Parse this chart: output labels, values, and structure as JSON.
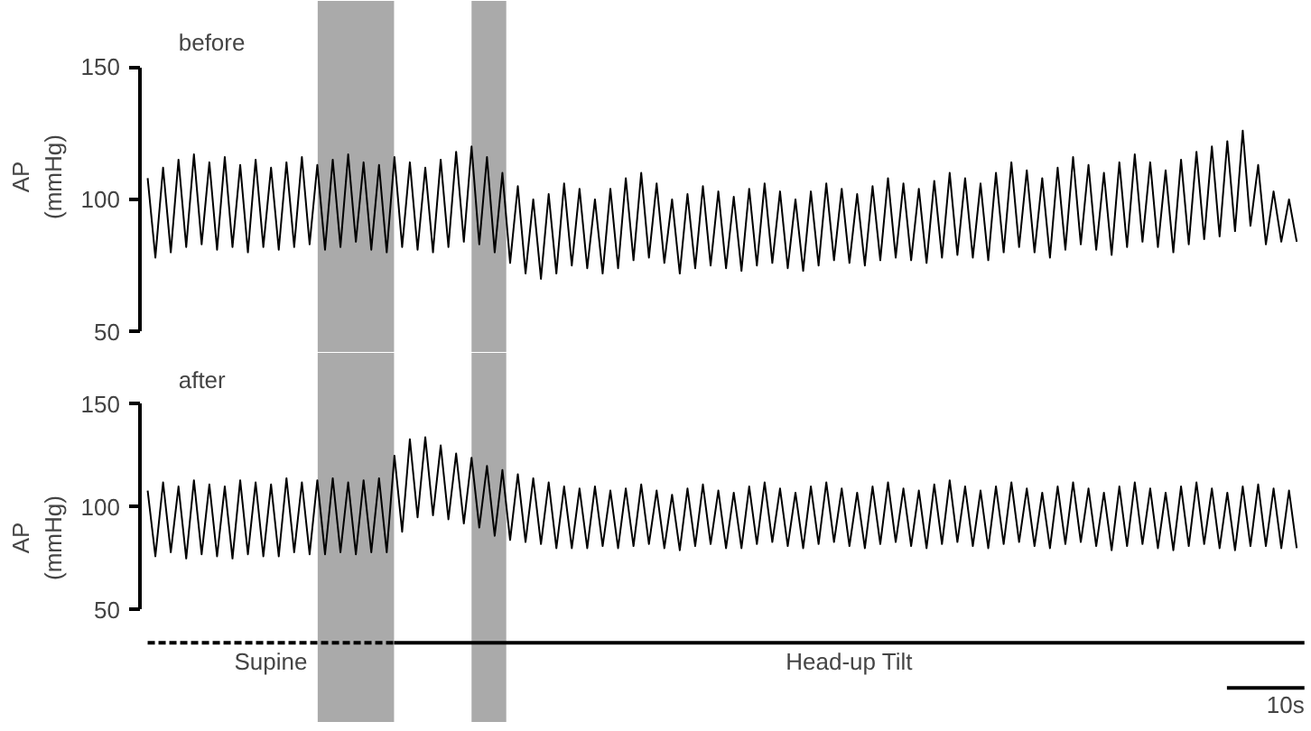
{
  "chart_data": [
    {
      "type": "line",
      "title": "before",
      "ylabel": "AP (mmHg)",
      "ylim": [
        50,
        150
      ],
      "yticks": [
        50,
        100,
        150
      ],
      "tick_labels": "y",
      "grid": false,
      "categories": [
        null,
        null,
        null,
        null,
        null,
        null,
        null,
        null,
        null,
        null,
        null,
        null,
        null,
        null,
        null,
        null,
        null,
        null,
        null,
        null,
        null,
        null,
        null,
        null,
        null,
        null,
        null,
        null,
        null,
        null,
        null,
        null,
        null,
        null,
        null,
        null,
        null,
        null,
        null,
        null,
        null,
        null,
        null,
        null,
        null,
        null,
        null,
        null,
        null,
        null,
        null,
        null,
        null,
        null,
        null,
        null,
        null,
        null,
        null,
        null,
        null,
        null,
        null,
        null,
        null,
        null,
        null,
        null,
        null,
        null,
        null,
        null,
        null,
        null,
        null,
        null,
        null,
        null,
        null,
        null,
        null,
        null,
        null,
        null,
        null,
        null,
        null,
        null,
        null,
        null,
        null,
        null,
        null,
        null,
        null,
        null,
        null,
        null,
        null,
        null,
        null,
        null,
        null,
        null,
        null,
        null,
        null,
        null,
        null,
        null,
        null,
        null,
        null,
        null,
        null,
        null,
        null,
        null,
        null,
        null,
        null,
        null,
        null,
        null,
        null,
        null,
        null,
        null,
        null,
        null,
        null,
        null,
        null,
        null,
        null,
        null,
        null,
        null,
        null,
        null,
        null,
        null,
        null,
        null,
        null,
        null,
        null,
        null,
        null,
        null
      ],
      "series": [
        {
          "color": "#000000",
          "values": [
            108,
            78,
            112,
            80,
            115,
            82,
            117,
            83,
            114,
            81,
            116,
            82,
            113,
            80,
            115,
            82,
            112,
            81,
            114,
            82,
            116,
            83,
            113,
            81,
            115,
            82,
            117,
            84,
            114,
            81,
            113,
            80,
            116,
            82,
            114,
            81,
            112,
            80,
            115,
            82,
            118,
            84,
            120,
            83,
            116,
            80,
            110,
            76,
            105,
            72,
            100,
            70,
            102,
            72,
            106,
            75,
            104,
            74,
            100,
            72,
            104,
            74,
            108,
            77,
            110,
            78,
            106,
            76,
            100,
            72,
            102,
            74,
            105,
            75,
            103,
            74,
            101,
            73,
            104,
            75,
            106,
            76,
            103,
            74,
            100,
            73,
            103,
            75,
            106,
            77,
            104,
            76,
            102,
            75,
            105,
            77,
            108,
            78,
            106,
            77,
            104,
            76,
            107,
            78,
            110,
            79,
            108,
            78,
            106,
            77,
            110,
            80,
            114,
            82,
            111,
            80,
            108,
            78,
            112,
            81,
            116,
            83,
            113,
            81,
            110,
            79,
            114,
            82,
            117,
            84,
            114,
            82,
            111,
            80,
            115,
            83,
            118,
            85,
            120,
            86,
            122,
            88,
            126,
            90,
            113,
            83,
            103,
            84,
            100,
            84
          ]
        }
      ]
    },
    {
      "type": "line",
      "title": "after",
      "ylabel": "AP (mmHg)",
      "ylim": [
        50,
        150
      ],
      "yticks": [
        50,
        100,
        150
      ],
      "tick_labels": "y",
      "grid": false,
      "categories": [
        null,
        null,
        null,
        null,
        null,
        null,
        null,
        null,
        null,
        null,
        null,
        null,
        null,
        null,
        null,
        null,
        null,
        null,
        null,
        null,
        null,
        null,
        null,
        null,
        null,
        null,
        null,
        null,
        null,
        null,
        null,
        null,
        null,
        null,
        null,
        null,
        null,
        null,
        null,
        null,
        null,
        null,
        null,
        null,
        null,
        null,
        null,
        null,
        null,
        null,
        null,
        null,
        null,
        null,
        null,
        null,
        null,
        null,
        null,
        null,
        null,
        null,
        null,
        null,
        null,
        null,
        null,
        null,
        null,
        null,
        null,
        null,
        null,
        null,
        null,
        null,
        null,
        null,
        null,
        null,
        null,
        null,
        null,
        null,
        null,
        null,
        null,
        null,
        null,
        null,
        null,
        null,
        null,
        null,
        null,
        null,
        null,
        null,
        null,
        null,
        null,
        null,
        null,
        null,
        null,
        null,
        null,
        null,
        null,
        null,
        null,
        null,
        null,
        null,
        null,
        null,
        null,
        null,
        null,
        null,
        null,
        null,
        null,
        null,
        null,
        null,
        null,
        null,
        null,
        null,
        null,
        null,
        null,
        null,
        null,
        null,
        null,
        null,
        null,
        null,
        null,
        null,
        null,
        null,
        null,
        null,
        null,
        null,
        null,
        null
      ],
      "series": [
        {
          "color": "#000000",
          "values": [
            108,
            76,
            112,
            78,
            110,
            75,
            113,
            77,
            111,
            76,
            110,
            75,
            113,
            77,
            112,
            76,
            111,
            76,
            114,
            78,
            112,
            77,
            113,
            77,
            114,
            78,
            112,
            77,
            113,
            78,
            114,
            78,
            125,
            88,
            133,
            95,
            134,
            96,
            130,
            94,
            126,
            92,
            124,
            90,
            120,
            86,
            118,
            84,
            116,
            83,
            114,
            82,
            112,
            80,
            110,
            80,
            109,
            80,
            110,
            81,
            108,
            80,
            109,
            81,
            111,
            82,
            108,
            80,
            106,
            79,
            109,
            81,
            111,
            82,
            108,
            80,
            107,
            80,
            110,
            82,
            112,
            83,
            109,
            81,
            107,
            80,
            110,
            82,
            112,
            83,
            109,
            81,
            107,
            80,
            110,
            82,
            112,
            83,
            109,
            81,
            108,
            80,
            111,
            82,
            113,
            83,
            110,
            81,
            108,
            80,
            110,
            82,
            112,
            83,
            109,
            81,
            107,
            80,
            110,
            82,
            112,
            83,
            109,
            81,
            107,
            79,
            110,
            81,
            112,
            82,
            109,
            80,
            107,
            79,
            110,
            81,
            112,
            82,
            109,
            80,
            107,
            79,
            110,
            81,
            111,
            81,
            109,
            80,
            108,
            80
          ]
        }
      ],
      "annotations": [
        "Supine",
        "Head-up Tilt",
        "10s"
      ]
    }
  ]
}
